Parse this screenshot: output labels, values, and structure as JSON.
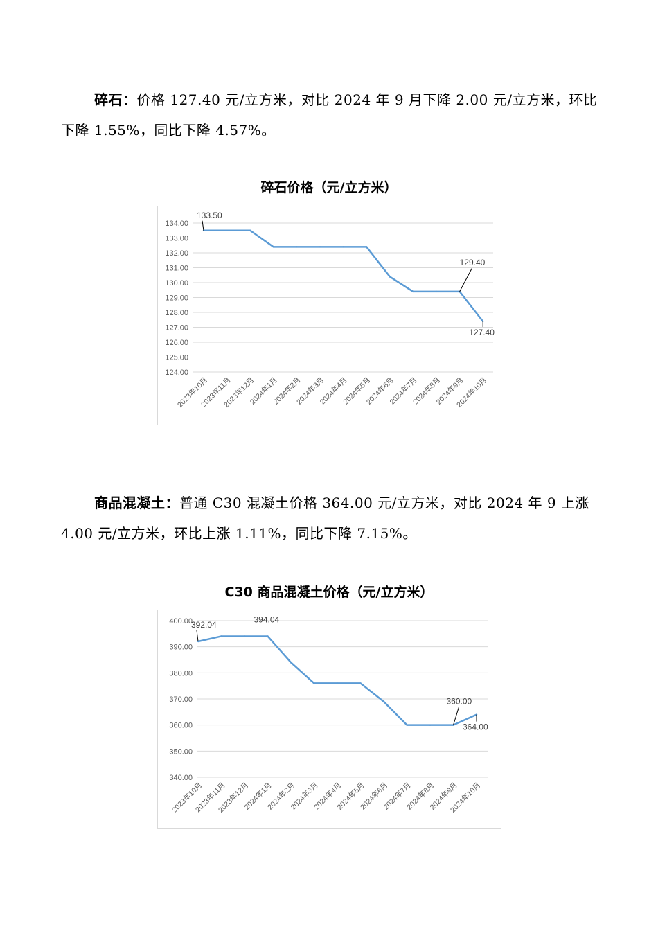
{
  "paragraph1": {
    "label": "碎石：",
    "text": "价格 127.40 元/立方米，对比 2024 年 9 月下降 2.00 元/立方米，环比下降 1.55%，同比下降 4.57%。"
  },
  "paragraph2": {
    "label": "商品混凝土：",
    "text": "普通 C30 混凝土价格 364.00 元/立方米，对比 2024 年 9 上涨 4.00 元/立方米，环比上涨 1.11%，同比下降 7.15%。"
  },
  "chart_data": [
    {
      "type": "line",
      "title": "碎石价格（元/立方米）",
      "categories": [
        "2023年10月",
        "2023年11月",
        "2023年12月",
        "2024年1月",
        "2024年2月",
        "2024年3月",
        "2024年4月",
        "2024年5月",
        "2024年6月",
        "2024年7月",
        "2024年8月",
        "2024年9月",
        "2024年10月"
      ],
      "values": [
        133.5,
        133.5,
        133.5,
        132.4,
        132.4,
        132.4,
        132.4,
        132.4,
        130.4,
        129.4,
        129.4,
        129.4,
        127.4
      ],
      "ylim": [
        124,
        134
      ],
      "yticks": [
        "124.00",
        "125.00",
        "126.00",
        "127.00",
        "128.00",
        "129.00",
        "130.00",
        "131.00",
        "132.00",
        "133.00",
        "134.00"
      ],
      "data_labels": [
        {
          "index": 0,
          "text": "133.50"
        },
        {
          "index": 11,
          "text": "129.40"
        },
        {
          "index": 12,
          "text": "127.40"
        }
      ],
      "line_color": "#5b9bd5",
      "grid": true
    },
    {
      "type": "line",
      "title": "C30 商品混凝土价格（元/立方米）",
      "categories": [
        "2023年10月",
        "2023年11月",
        "2023年12月",
        "2024年1月",
        "2024年2月",
        "2024年3月",
        "2024年4月",
        "2024年5月",
        "2024年6月",
        "2024年7月",
        "2024年8月",
        "2024年9月",
        "2024年10月"
      ],
      "values": [
        392.04,
        394.04,
        394.04,
        394.04,
        384,
        376,
        376,
        376,
        369,
        360,
        360,
        360,
        364
      ],
      "ylim": [
        340,
        400
      ],
      "yticks": [
        "340.00",
        "350.00",
        "360.00",
        "370.00",
        "380.00",
        "390.00",
        "400.00"
      ],
      "data_labels": [
        {
          "index": 0,
          "text": "392.04"
        },
        {
          "index": 3,
          "text": "394.04"
        },
        {
          "index": 11,
          "text": "360.00"
        },
        {
          "index": 12,
          "text": "364.00"
        }
      ],
      "line_color": "#5b9bd5",
      "grid": true
    }
  ]
}
